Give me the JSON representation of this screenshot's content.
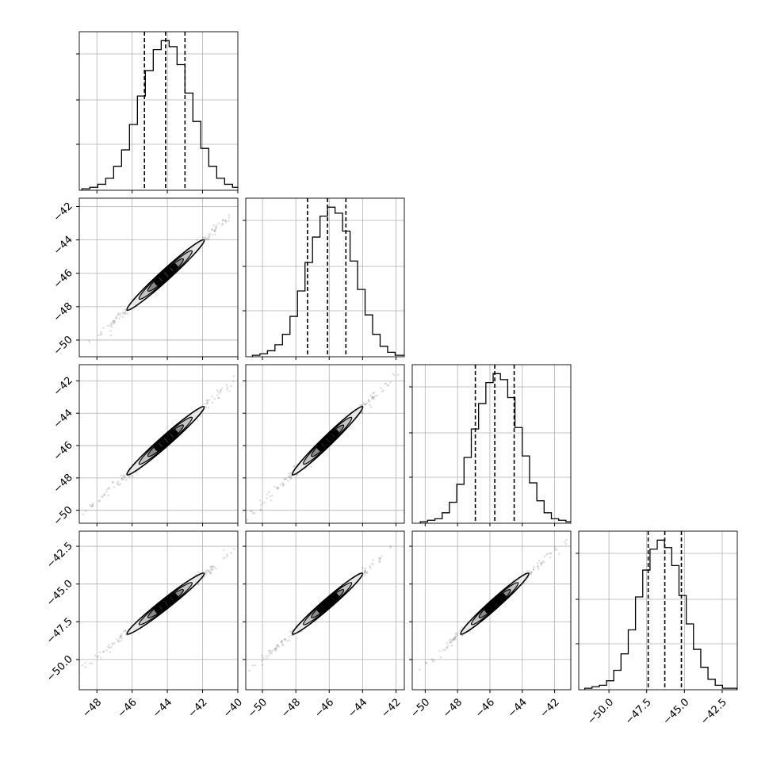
{
  "chart_data": {
    "type": "corner",
    "n_params": 4,
    "grid": true,
    "params": [
      {
        "range": [
          -49,
          -40
        ],
        "ticks": [
          -48,
          -46,
          -44,
          -42,
          -40
        ],
        "tick_labels": [
          "−48",
          "−46",
          "−44",
          "−42",
          "−40"
        ],
        "quantiles": [
          -45.3,
          -44.1,
          -43.0
        ],
        "mean": -44.1,
        "sd": 1.25
      },
      {
        "range": [
          -51,
          -41.5
        ],
        "ticks": [
          -50,
          -48,
          -46,
          -44,
          -42
        ],
        "tick_labels": [
          "−50",
          "−48",
          "−46",
          "−44",
          "−42"
        ],
        "quantiles": [
          -47.3,
          -46.1,
          -45.0
        ],
        "mean": -46.1,
        "sd": 1.2
      },
      {
        "range": [
          -50.8,
          -41
        ],
        "ticks": [
          -50,
          -48,
          -46,
          -44,
          -42
        ],
        "tick_labels": [
          "−50",
          "−48",
          "−46",
          "−44",
          "−42"
        ],
        "quantiles": [
          -46.9,
          -45.7,
          -44.5
        ],
        "mean": -45.7,
        "sd": 1.2
      },
      {
        "range": [
          -52,
          -41.5
        ],
        "ticks": [
          -50.0,
          -47.5,
          -45.0,
          -42.5
        ],
        "tick_labels": [
          "−50.0",
          "−47.5",
          "−45.0",
          "−42.5"
        ],
        "quantiles": [
          -47.4,
          -46.3,
          -45.2
        ],
        "mean": -46.3,
        "sd": 1.15
      }
    ],
    "y_tick_params": [
      null,
      {
        "ticks": [
          -50,
          -48,
          -46,
          -44,
          -42
        ],
        "tick_labels": [
          "−50",
          "−48",
          "−46",
          "−44",
          "−42"
        ]
      },
      {
        "ticks": [
          -50,
          -48,
          -46,
          -44,
          -42
        ],
        "tick_labels": [
          "−50",
          "−48",
          "−46",
          "−44",
          "−42"
        ]
      },
      {
        "ticks": [
          -50.0,
          -47.5,
          -45.0,
          -42.5
        ],
        "tick_labels": [
          "−50.0",
          "−47.5",
          "−45.0",
          "−42.5"
        ]
      }
    ],
    "histograms": [
      {
        "edges_start": -48.85,
        "bin_width": 0.45,
        "counts": [
          1,
          2,
          4,
          8,
          16,
          27,
          44,
          63,
          80,
          94,
          100,
          96,
          84,
          65,
          46,
          28,
          16,
          8,
          4,
          2,
          1
        ]
      },
      {
        "edges_start": -50.6,
        "bin_width": 0.45,
        "counts": [
          1,
          2,
          4,
          8,
          15,
          27,
          44,
          63,
          80,
          94,
          100,
          96,
          84,
          64,
          45,
          28,
          15,
          7,
          3,
          1,
          1
        ]
      },
      {
        "edges_start": -50.3,
        "bin_width": 0.45,
        "counts": [
          1,
          2,
          3,
          7,
          14,
          26,
          44,
          63,
          80,
          94,
          100,
          96,
          84,
          64,
          45,
          27,
          15,
          7,
          3,
          2,
          1
        ]
      },
      {
        "edges_start": -51.6,
        "bin_width": 0.48,
        "counts": [
          1,
          2,
          3,
          6,
          13,
          24,
          40,
          62,
          80,
          94,
          100,
          95,
          83,
          63,
          44,
          27,
          15,
          7,
          3,
          1,
          1
        ]
      }
    ],
    "correlation": 0.985,
    "hist_yticks_fraction": [
      0.29,
      0.57,
      0.86
    ]
  }
}
